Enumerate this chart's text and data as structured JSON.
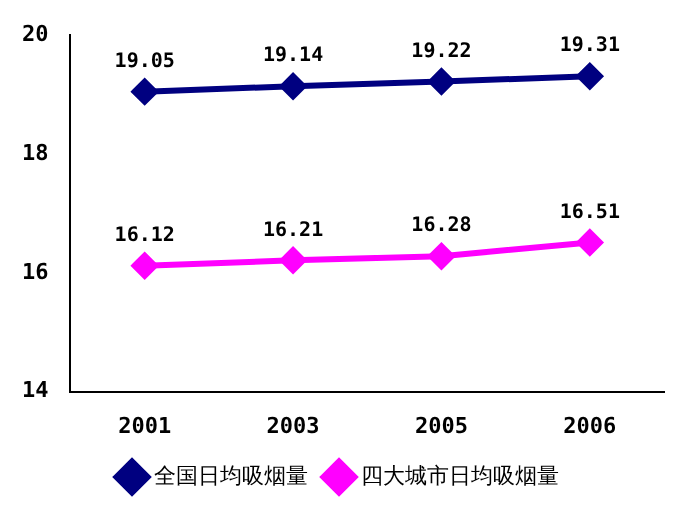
{
  "chart_data": {
    "type": "line",
    "categories": [
      "2001",
      "2003",
      "2005",
      "2006"
    ],
    "series": [
      {
        "name": "全国日均吸烟量",
        "color": "#000080",
        "values": [
          19.05,
          19.14,
          19.22,
          19.31
        ]
      },
      {
        "name": "四大城市日均吸烟量",
        "color": "#ff00ff",
        "values": [
          16.12,
          16.21,
          16.28,
          16.51
        ]
      }
    ],
    "ylim": [
      14,
      20
    ],
    "yticks": [
      14,
      16,
      18,
      20
    ],
    "grid": false,
    "legend": "bottom",
    "marker": "diamond",
    "line_style": "solid",
    "data_labels": true
  }
}
